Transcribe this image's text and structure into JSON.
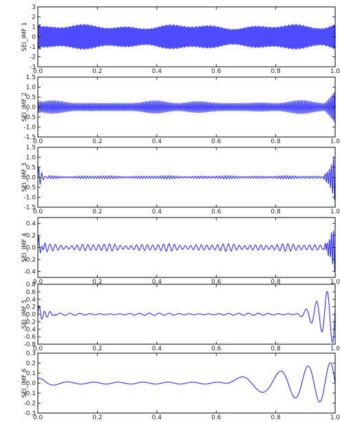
{
  "chart_data": [
    {
      "type": "line",
      "ylabel": "SEI_IMF 1",
      "xlim": [
        0,
        1
      ],
      "ylim": [
        -3,
        3
      ],
      "x_ticks": [
        "0.0",
        "0.2",
        "0.4",
        "0.6",
        "0.8",
        "1.0"
      ],
      "y_ticks": [
        "3",
        "2",
        "1",
        "0",
        "-1",
        "-2",
        "-3"
      ],
      "signal": {
        "kind": "dense",
        "amplitude": 1.3,
        "cycles": 420,
        "edge_amplitude": 1.6
      },
      "color": "#3a3aff"
    },
    {
      "type": "line",
      "ylabel": "SEI_IMF 2",
      "xlim": [
        0,
        1
      ],
      "ylim": [
        -1.5,
        1.5
      ],
      "x_ticks": [
        "0.0",
        "0.2",
        "0.4",
        "0.6",
        "0.8",
        "1.0"
      ],
      "y_ticks": [
        "1.5",
        "1.0",
        "0.5",
        "0.0",
        "-0.5",
        "-1.0",
        "-1.5"
      ],
      "signal": {
        "kind": "dense",
        "amplitude": 0.35,
        "cycles": 260,
        "edge_amplitude": 1.3
      },
      "color": "#3a3aff"
    },
    {
      "type": "line",
      "ylabel": "SEI_IMF 3",
      "xlim": [
        0,
        1
      ],
      "ylim": [
        -1.5,
        1.5
      ],
      "x_ticks": [
        "0.0",
        "0.2",
        "0.4",
        "0.6",
        "0.8",
        "1.0"
      ],
      "y_ticks": [
        "1.5",
        "1.0",
        "0.5",
        "0.0",
        "-0.5",
        "-1.0",
        "-1.5"
      ],
      "signal": {
        "kind": "sparse",
        "amplitude": 0.05,
        "cycles": 110,
        "edge_amplitude": 1.2
      },
      "color": "#3a3aff"
    },
    {
      "type": "line",
      "ylabel": "SEI_IMF 4",
      "xlim": [
        0,
        1
      ],
      "ylim": [
        -0.5,
        0.5
      ],
      "x_ticks": [
        "0.0",
        "0.2",
        "0.4",
        "0.6",
        "0.8",
        "1.0"
      ],
      "y_ticks": [
        "0.4",
        "0.2",
        "0.0",
        "-0.2",
        "-0.4"
      ],
      "signal": {
        "kind": "sparse",
        "amplitude": 0.04,
        "cycles": 55,
        "edge_amplitude": 0.4
      },
      "color": "#3a3aff"
    },
    {
      "type": "line",
      "ylabel": "SEI_IMF 5",
      "xlim": [
        0,
        1
      ],
      "ylim": [
        -0.8,
        0.8
      ],
      "x_ticks": [
        "0.0",
        "0.2",
        "0.4",
        "0.6",
        "0.8",
        "1.0"
      ],
      "y_ticks": [
        "0.8",
        "0.6",
        "0.4",
        "0.2",
        "0.0",
        "-0.2",
        "-0.4",
        "-0.6",
        "-0.8"
      ],
      "signal": {
        "kind": "slow5",
        "amplitude": 0.02,
        "cycles": 30,
        "edge_amplitude": 0.7
      },
      "color": "#3a3aff"
    },
    {
      "type": "line",
      "ylabel": "SEI_IMF 6",
      "xlim": [
        0,
        1
      ],
      "ylim": [
        -0.3,
        0.3
      ],
      "x_ticks": [
        "0.0",
        "0.2",
        "0.4",
        "0.6",
        "0.8",
        "1.0"
      ],
      "y_ticks": [
        "0.3",
        "0.2",
        "0.1",
        "0.0",
        "-0.1",
        "-0.2",
        "-0.3"
      ],
      "signal": {
        "kind": "slow6",
        "amplitude": 0.02,
        "cycles": 6,
        "edge_amplitude": 0.25
      },
      "color": "#3a3aff"
    }
  ]
}
